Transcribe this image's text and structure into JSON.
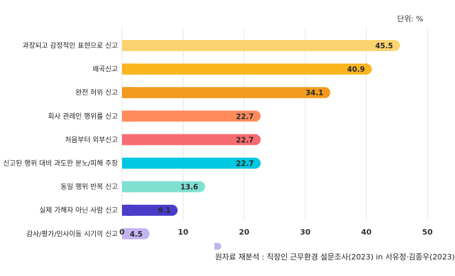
{
  "unit": "단위: %",
  "source": "원자료 재분석 : 직장인 근무환경 설문조사(2023) in 서유정·김종우(2023)",
  "chart_data": {
    "type": "bar",
    "orientation": "horizontal",
    "categories": [
      "과장되고 감정적인 표현으로 신고",
      "왜곡신고",
      "완전 허위 신고",
      "회사 관례인 행위를 신고",
      "처음부터 외부신고",
      "신고된 행위 대비 과도한 분노/피해 주장",
      "동일 행위 반복 신고",
      "실제 가해자 아닌 사람 신고",
      "감사/평가/인사이동 시기의 신고"
    ],
    "values": [
      45.5,
      40.9,
      34.1,
      22.7,
      22.7,
      22.7,
      13.6,
      9.1,
      4.5
    ],
    "value_labels": [
      "45.5",
      "40.9",
      "34.1",
      "22.7",
      "22.7",
      "22.7",
      "13.6",
      "9.1",
      "4.5"
    ],
    "colors": [
      "#fdd36f",
      "#fbb51f",
      "#f29a1d",
      "#ff8a5c",
      "#f76b72",
      "#00c8e0",
      "#7fe0d0",
      "#4b3bc9",
      "#c3b3f0"
    ],
    "xlim": [
      0,
      50
    ],
    "xticks": [
      "0",
      "10",
      "20",
      "30",
      "40",
      "50"
    ],
    "grid": true
  }
}
